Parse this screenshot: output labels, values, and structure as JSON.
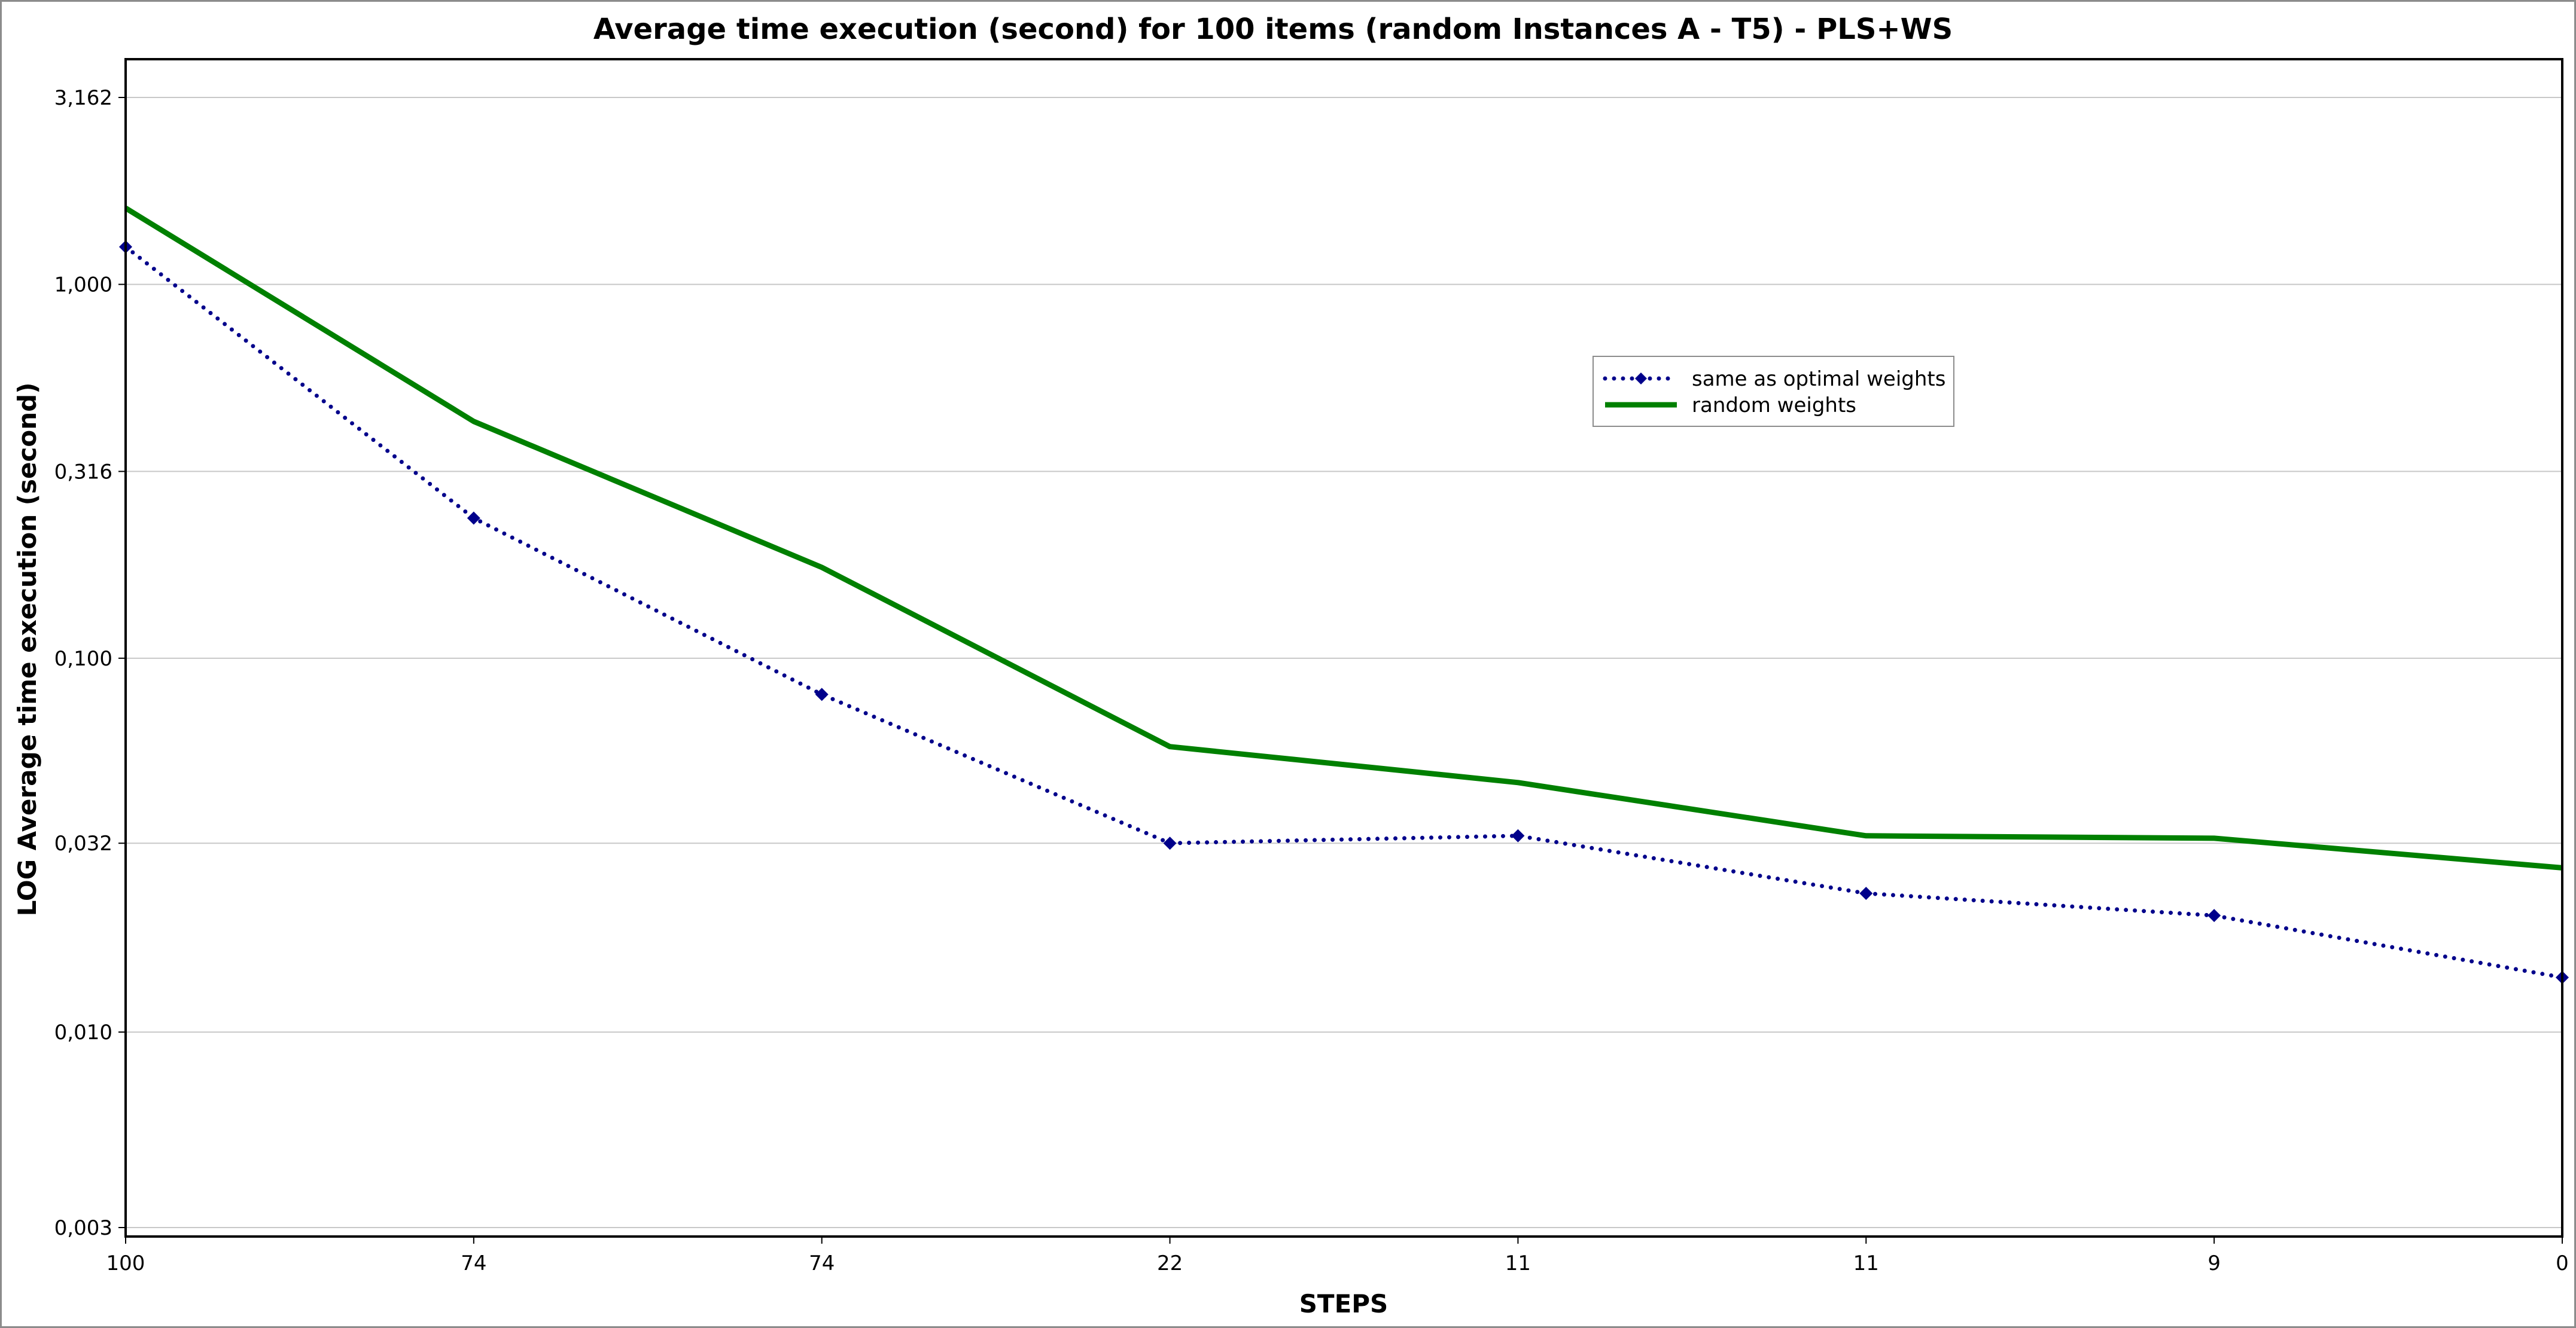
{
  "chart_data": {
    "type": "line",
    "title": "Average time execution (second) for 100 items (random Instances A - T5) - PLS+WS",
    "xlabel": "STEPS",
    "ylabel": "LOG Average time execution (second)",
    "y_scale": "log",
    "ylim": [
      0.003,
      3.162
    ],
    "y_ticks": [
      {
        "value": 3.162,
        "label": "3,162"
      },
      {
        "value": 1.0,
        "label": "1,000"
      },
      {
        "value": 0.316,
        "label": "0,316"
      },
      {
        "value": 0.1,
        "label": "0,100"
      },
      {
        "value": 0.032,
        "label": "0,032"
      },
      {
        "value": 0.01,
        "label": "0,010"
      },
      {
        "value": 0.003,
        "label": "0,003"
      }
    ],
    "categories": [
      "100",
      "74",
      "74",
      "22",
      "11",
      "11",
      "9",
      "0"
    ],
    "grid": true,
    "legend_position": "top-right",
    "series": [
      {
        "name": "same as optimal weights",
        "color": "#00008B",
        "line_style": "dotted",
        "marker": "diamond",
        "values": [
          1.26,
          0.237,
          0.08,
          0.032,
          0.0335,
          0.0235,
          0.0205,
          0.014
        ]
      },
      {
        "name": "random weights",
        "color": "#008000",
        "line_style": "solid",
        "marker": "none",
        "values": [
          1.6,
          0.43,
          0.175,
          0.058,
          0.0465,
          0.0335,
          0.033,
          0.0275
        ]
      }
    ]
  }
}
